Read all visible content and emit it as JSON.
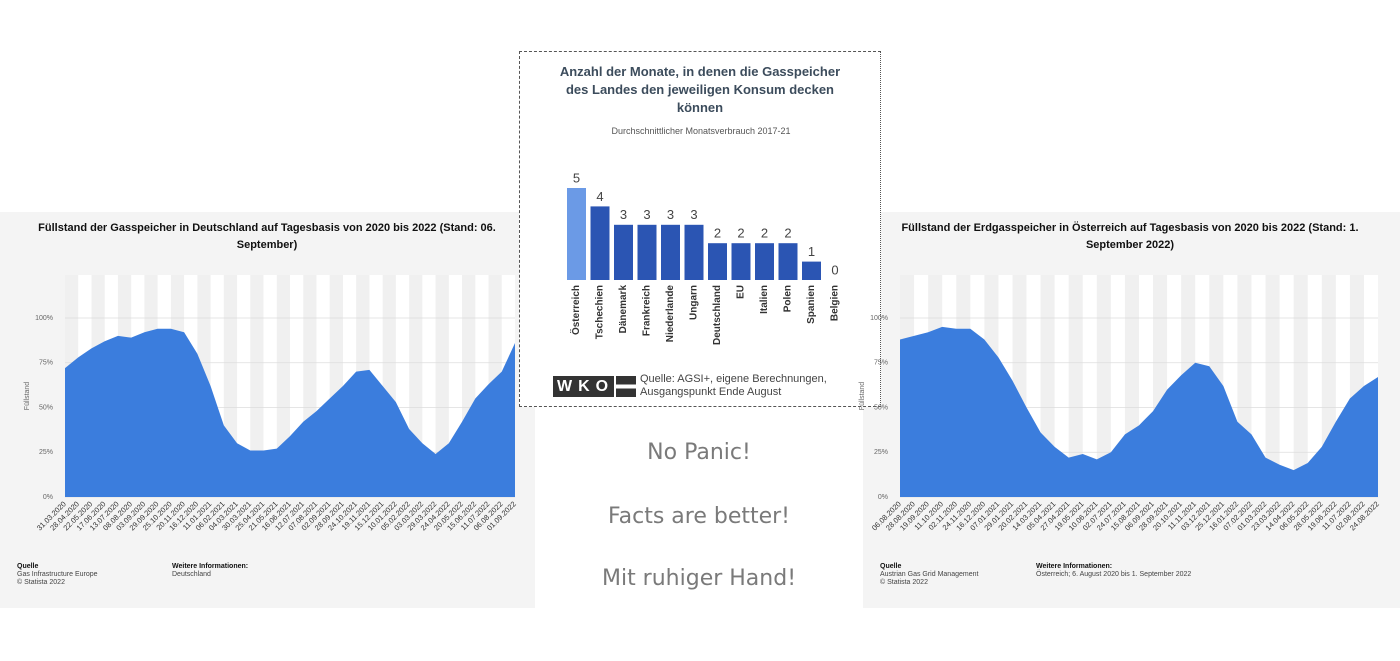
{
  "chart_data": [
    {
      "type": "area",
      "title": "Füllstand der Gasspeicher in Deutschland auf Tagesbasis von 2020 bis 2022 (Stand: 06. September)",
      "y_label": "Füllstand",
      "color": "#3b7ddd",
      "categories": [
        "31.03.2020",
        "28.04.2020",
        "22.05.2020",
        "17.06.2020",
        "13.07.2020",
        "08.08.2020",
        "03.09.2020",
        "29.09.2020",
        "25.10.2020",
        "20.11.2020",
        "16.12.2020",
        "11.01.2021",
        "06.02.2021",
        "04.03.2021",
        "30.03.2021",
        "25.04.2021",
        "21.05.2021",
        "16.06.2021",
        "12.07.2021",
        "07.08.2021",
        "02.09.2021",
        "28.09.2021",
        "24.10.2021",
        "19.11.2021",
        "15.12.2021",
        "10.01.2022",
        "05.02.2022",
        "03.03.2022",
        "29.03.2022",
        "24.04.2022",
        "20.05.2022",
        "15.06.2022",
        "11.07.2022",
        "06.08.2022",
        "01.09.2022"
      ],
      "values": [
        72,
        78,
        83,
        87,
        90,
        89,
        92,
        94,
        94,
        92,
        80,
        62,
        40,
        30,
        26,
        26,
        27,
        34,
        42,
        48,
        55,
        62,
        70,
        71,
        62,
        53,
        38,
        30,
        24,
        30,
        42,
        55,
        63,
        70,
        86
      ],
      "ylim": [
        0,
        124
      ],
      "yticks": [
        {
          "value": 0,
          "label": "0%"
        },
        {
          "value": 25,
          "label": "25%"
        },
        {
          "value": 50,
          "label": "50%"
        },
        {
          "value": 75,
          "label": "75%"
        },
        {
          "value": 100,
          "label": "100%"
        }
      ],
      "source_heading": "Quelle",
      "source": "Gas Infrastructure Europe",
      "copyright": "© Statista 2022",
      "info_heading": "Weitere Informationen:",
      "info": "Deutschland"
    },
    {
      "type": "bar",
      "title": "Anzahl der Monate, in denen die Gasspeicher des Landes den jeweiligen Konsum decken können",
      "subtitle": "Durchschnittlicher Monatsverbrauch 2017-21",
      "categories": [
        "Österreich",
        "Tschechien",
        "Dänemark",
        "Frankreich",
        "Niederlande",
        "Ungarn",
        "Deutschland",
        "EU",
        "Italien",
        "Polen",
        "Spanien",
        "Belgien"
      ],
      "values": [
        5,
        4,
        3,
        3,
        3,
        3,
        2,
        2,
        2,
        2,
        1,
        0
      ],
      "colors": [
        "#6b9ae6",
        "#2b55b3",
        "#2b55b3",
        "#2b55b3",
        "#2b55b3",
        "#2b55b3",
        "#2b55b3",
        "#2b55b3",
        "#2b55b3",
        "#2b55b3",
        "#2b55b3",
        "#2b55b3"
      ],
      "logo": "WKO",
      "source": "Quelle: AGSI+, eigene Berechnungen, Ausgangspunkt Ende August"
    },
    {
      "type": "area",
      "title": "Füllstand der Erdgasspeicher in Österreich auf Tagesbasis von 2020 bis 2022 (Stand: 1. September 2022)",
      "y_label": "Füllstand",
      "color": "#3b7ddd",
      "categories": [
        "06.08.2020",
        "28.08.2020",
        "19.09.2020",
        "11.10.2020",
        "02.11.2020",
        "24.11.2020",
        "16.12.2020",
        "07.01.2021",
        "29.01.2021",
        "20.02.2021",
        "14.03.2021",
        "05.04.2021",
        "27.04.2021",
        "19.05.2021",
        "10.06.2021",
        "02.07.2021",
        "24.07.2021",
        "15.08.2021",
        "06.09.2021",
        "28.09.2021",
        "20.10.2021",
        "11.11.2021",
        "03.12.2021",
        "25.12.2021",
        "16.01.2022",
        "07.02.2022",
        "01.03.2022",
        "23.03.2022",
        "14.04.2022",
        "06.05.2022",
        "28.05.2022",
        "19.06.2022",
        "11.07.2022",
        "02.08.2022",
        "24.08.2022"
      ],
      "values": [
        88,
        90,
        92,
        95,
        94,
        94,
        88,
        78,
        65,
        50,
        36,
        28,
        22,
        24,
        21,
        25,
        35,
        40,
        48,
        60,
        68,
        75,
        73,
        62,
        42,
        35,
        22,
        18,
        15,
        19,
        28,
        42,
        55,
        62,
        67
      ],
      "ylim": [
        0,
        124
      ],
      "yticks": [
        {
          "value": 0,
          "label": "0%"
        },
        {
          "value": 25,
          "label": "25%"
        },
        {
          "value": 50,
          "label": "50%"
        },
        {
          "value": 75,
          "label": "75%"
        },
        {
          "value": 100,
          "label": "100%"
        }
      ],
      "source_heading": "Quelle",
      "source": "Austrian Gas Grid Management",
      "copyright": "© Statista 2022",
      "info_heading": "Weitere Informationen:",
      "info": "Österreich; 6. August 2020 bis 1. September 2022"
    }
  ],
  "slide_texts": [
    "No Panic!",
    "Facts are better!",
    "Mit ruhiger Hand!"
  ]
}
